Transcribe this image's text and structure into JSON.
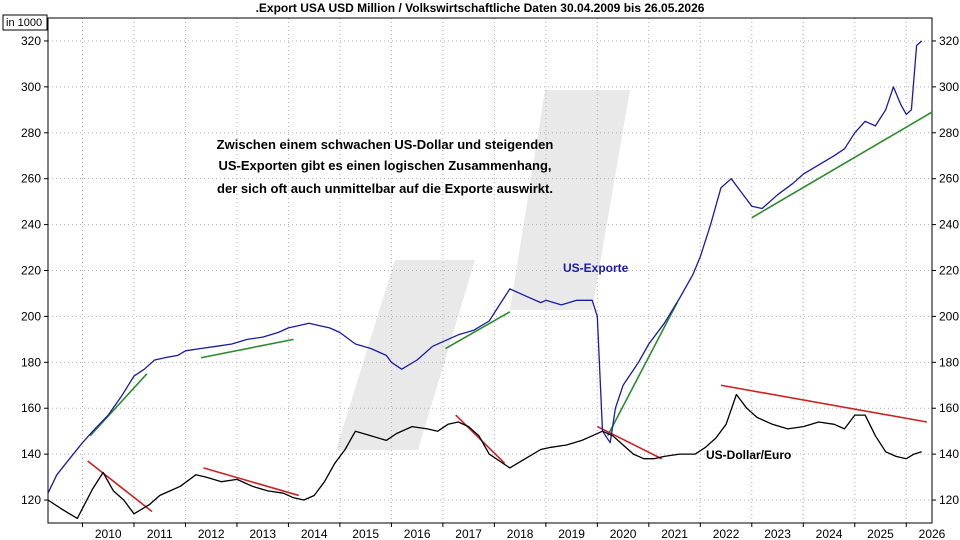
{
  "chart_data": {
    "type": "line",
    "title": ".Export USA USD Million / Volkswirtschaftliche Daten 30.04.2009 bis 26.05.2026",
    "unit_label": "in 1000",
    "xlabel": "",
    "ylabel": "",
    "xlim": [
      2009.33,
      2026.5
    ],
    "ylim": [
      110,
      330
    ],
    "y_ticks": [
      120,
      140,
      160,
      180,
      200,
      220,
      240,
      260,
      280,
      300,
      320
    ],
    "x_ticks": [
      "2010",
      "2011",
      "2012",
      "2013",
      "2014",
      "2015",
      "2016",
      "2017",
      "2018",
      "2019",
      "2020",
      "2021",
      "2022",
      "2023",
      "2024",
      "2025",
      "2026"
    ],
    "grid": true,
    "annotation": [
      "Zwischen einem schwachen US-Dollar und steigenden",
      "US-Exporten gibt es einen logischen Zusammenhang,",
      "der sich oft auch unmittelbar auf die Exporte auswirkt."
    ],
    "series": [
      {
        "name": "US-Exporte",
        "color": "#1a1aa6",
        "x": [
          2009.33,
          2009.5,
          2009.75,
          2010.0,
          2010.2,
          2010.5,
          2010.75,
          2011.0,
          2011.2,
          2011.4,
          2011.6,
          2011.85,
          2012.0,
          2012.3,
          2012.6,
          2012.9,
          2013.2,
          2013.5,
          2013.8,
          2014.0,
          2014.2,
          2014.4,
          2014.6,
          2014.8,
          2015.0,
          2015.3,
          2015.6,
          2015.9,
          2016.0,
          2016.2,
          2016.5,
          2016.8,
          2017.0,
          2017.3,
          2017.6,
          2017.9,
          2018.1,
          2018.3,
          2018.6,
          2018.9,
          2019.0,
          2019.3,
          2019.6,
          2019.9,
          2020.0,
          2020.1,
          2020.25,
          2020.35,
          2020.5,
          2020.8,
          2021.0,
          2021.3,
          2021.6,
          2021.85,
          2022.0,
          2022.2,
          2022.4,
          2022.6,
          2022.8,
          2023.0,
          2023.2,
          2023.5,
          2023.8,
          2024.0,
          2024.3,
          2024.6,
          2024.8,
          2025.0,
          2025.2,
          2025.4,
          2025.6,
          2025.75,
          2025.9,
          2026.0,
          2026.1,
          2026.2,
          2026.3
        ],
        "values": [
          123,
          131,
          138,
          145,
          150,
          157,
          165,
          174,
          177,
          181,
          182,
          183,
          185,
          186,
          187,
          188,
          190,
          191,
          193,
          195,
          196,
          197,
          196,
          195,
          193,
          188,
          186,
          183,
          180,
          177,
          181,
          187,
          189,
          192,
          194,
          198,
          205,
          212,
          209,
          206,
          207,
          205,
          207,
          207,
          200,
          150,
          145,
          160,
          170,
          180,
          188,
          197,
          208,
          218,
          226,
          240,
          256,
          260,
          254,
          248,
          247,
          253,
          258,
          262,
          266,
          270,
          273,
          280,
          285,
          283,
          290,
          300,
          292,
          288,
          290,
          318,
          320
        ]
      },
      {
        "name": "US-Dollar/Euro",
        "color": "#000000",
        "x": [
          2009.33,
          2009.6,
          2009.9,
          2010.2,
          2010.4,
          2010.6,
          2010.8,
          2011.0,
          2011.3,
          2011.5,
          2011.7,
          2011.9,
          2012.2,
          2012.4,
          2012.7,
          2013.0,
          2013.3,
          2013.6,
          2013.9,
          2014.1,
          2014.3,
          2014.5,
          2014.7,
          2014.9,
          2015.1,
          2015.3,
          2015.6,
          2015.9,
          2016.1,
          2016.4,
          2016.7,
          2016.9,
          2017.1,
          2017.3,
          2017.5,
          2017.7,
          2017.9,
          2018.1,
          2018.3,
          2018.6,
          2018.9,
          2019.1,
          2019.4,
          2019.7,
          2019.9,
          2020.1,
          2020.3,
          2020.5,
          2020.7,
          2020.9,
          2021.1,
          2021.3,
          2021.6,
          2021.9,
          2022.1,
          2022.3,
          2022.5,
          2022.7,
          2022.9,
          2023.1,
          2023.4,
          2023.7,
          2024.0,
          2024.3,
          2024.6,
          2024.8,
          2025.0,
          2025.2,
          2025.4,
          2025.6,
          2025.8,
          2026.0,
          2026.15,
          2026.3
        ],
        "values": [
          120,
          116,
          112,
          125,
          132,
          124,
          120,
          114,
          118,
          122,
          124,
          126,
          131,
          130,
          128,
          129,
          126,
          124,
          123,
          121,
          120,
          122,
          128,
          136,
          142,
          150,
          148,
          146,
          149,
          152,
          151,
          150,
          153,
          154,
          152,
          148,
          140,
          137,
          134,
          138,
          142,
          143,
          144,
          146,
          148,
          150,
          148,
          144,
          140,
          138,
          138,
          139,
          140,
          140,
          143,
          147,
          153,
          166,
          160,
          156,
          153,
          151,
          152,
          154,
          153,
          151,
          157,
          157,
          148,
          141,
          139,
          138,
          140,
          141
        ]
      }
    ],
    "trendlines": [
      {
        "color": "#2e8b2e",
        "x": [
          2010.15,
          2011.25
        ],
        "values": [
          148,
          175
        ]
      },
      {
        "color": "#2e8b2e",
        "x": [
          2012.3,
          2014.1
        ],
        "values": [
          182,
          190
        ]
      },
      {
        "color": "#2e8b2e",
        "x": [
          2017.05,
          2018.3
        ],
        "values": [
          186,
          202
        ]
      },
      {
        "color": "#2e8b2e",
        "x": [
          2020.2,
          2021.55
        ],
        "values": [
          148,
          206
        ]
      },
      {
        "color": "#2e8b2e",
        "x": [
          2023.0,
          2026.5
        ],
        "values": [
          243,
          289
        ]
      },
      {
        "color": "#cc2222",
        "x": [
          2010.1,
          2011.35
        ],
        "values": [
          137,
          115
        ]
      },
      {
        "color": "#cc2222",
        "x": [
          2012.35,
          2014.2
        ],
        "values": [
          134,
          122
        ]
      },
      {
        "color": "#cc2222",
        "x": [
          2017.25,
          2018.2
        ],
        "values": [
          157,
          136
        ]
      },
      {
        "color": "#cc2222",
        "x": [
          2020.0,
          2021.25
        ],
        "values": [
          152,
          138
        ]
      },
      {
        "color": "#cc2222",
        "x": [
          2022.4,
          2026.4
        ],
        "values": [
          170,
          154
        ]
      }
    ]
  }
}
